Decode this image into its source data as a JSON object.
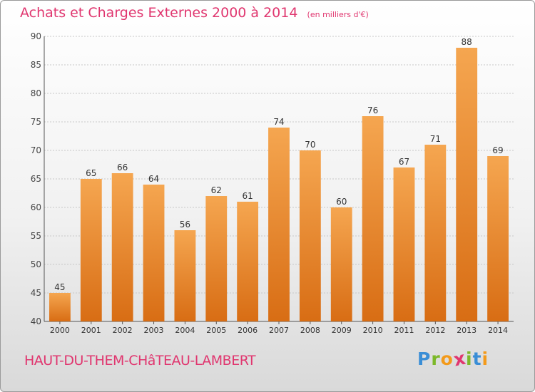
{
  "header": {
    "title": "Achats et Charges Externes 2000 à 2014",
    "subtitle": "(en milliers d'€)"
  },
  "footer": {
    "commune": "HAUT-DU-THEM-CHâTEAU-LAMBERT",
    "logo_letters": [
      "P",
      "r",
      "o",
      "x",
      "i",
      "t",
      "i"
    ],
    "logo_colors": [
      "#3a8ed6",
      "#7cb829",
      "#f39a1b",
      "#e0366f",
      "#7cb829",
      "#3a8ed6",
      "#f39a1b"
    ]
  },
  "colors": {
    "accent": "#e0366f",
    "bar_top": "#f5a650",
    "bar_bottom": "#d86d14",
    "grid": "#c8c8c8"
  },
  "chart_data": {
    "type": "bar",
    "title": "Achats et Charges Externes 2000 à 2014",
    "subtitle": "(en milliers d'€)",
    "categories": [
      "2000",
      "2001",
      "2002",
      "2003",
      "2004",
      "2005",
      "2006",
      "2007",
      "2008",
      "2009",
      "2010",
      "2011",
      "2012",
      "2013",
      "2014"
    ],
    "values": [
      45,
      65,
      66,
      64,
      56,
      62,
      61,
      74,
      70,
      60,
      76,
      67,
      71,
      88,
      69
    ],
    "ylim": [
      40,
      90
    ],
    "yticks": [
      40,
      45,
      50,
      55,
      60,
      65,
      70,
      75,
      80,
      85,
      90
    ],
    "grid": true,
    "data_labels": true
  }
}
